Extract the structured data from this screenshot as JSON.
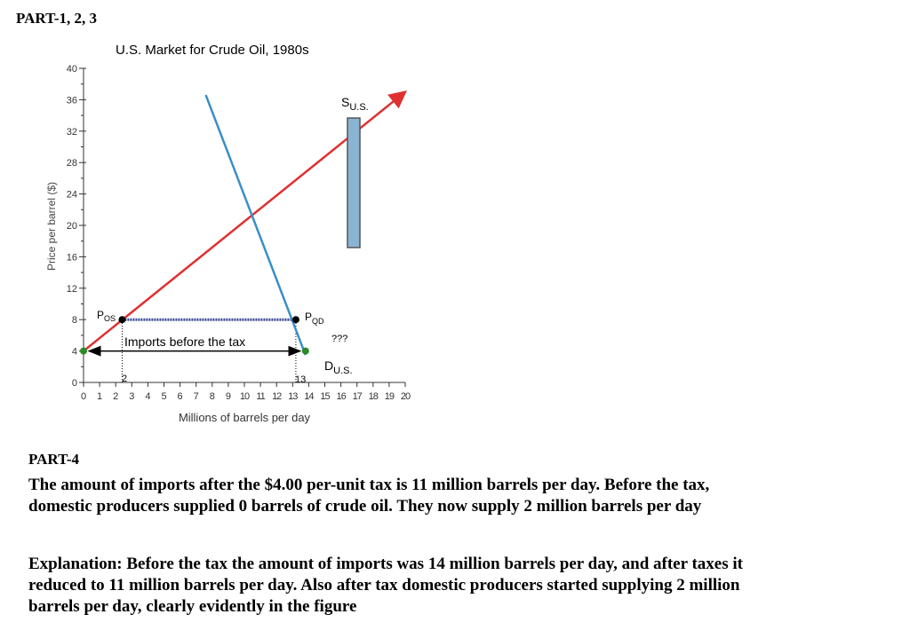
{
  "headings": {
    "part123": "PART-1, 2, 3",
    "part4": "PART-4"
  },
  "chart_data": {
    "type": "line",
    "title": "U.S. Market for Crude Oil, 1980s",
    "xlabel": "Millions of barrels per day",
    "ylabel": "Price per barrel ($)",
    "xlim": [
      0,
      20
    ],
    "ylim": [
      0,
      40
    ],
    "x_ticks": [
      0,
      1,
      2,
      3,
      4,
      5,
      6,
      7,
      8,
      9,
      10,
      11,
      12,
      13,
      14,
      15,
      16,
      17,
      18,
      19,
      20
    ],
    "y_ticks": [
      0,
      4,
      8,
      12,
      16,
      20,
      24,
      28,
      32,
      36,
      40
    ],
    "series": [
      {
        "name": "SU.S.",
        "color": "#e03030",
        "points": [
          [
            0,
            4
          ],
          [
            20,
            37
          ]
        ]
      },
      {
        "name": "DU.S.",
        "color": "#3a8fc8",
        "points": [
          [
            7.6,
            36.6
          ],
          [
            13.8,
            3.5
          ]
        ]
      }
    ],
    "price_lines": [
      {
        "y": 8,
        "x1": 2.4,
        "x2": 13.2,
        "color": "#3a4a9a"
      }
    ],
    "vertical_guides": [
      {
        "x": 2.4,
        "y1": 0,
        "y2": 8
      },
      {
        "x": 13.2,
        "y1": 0,
        "y2": 8
      }
    ],
    "points": [
      {
        "x": 0,
        "y": 4,
        "color": "#2a8a2a"
      },
      {
        "x": 2.4,
        "y": 8,
        "color": "#000000"
      },
      {
        "x": 13.2,
        "y": 8,
        "color": "#000000"
      },
      {
        "x": 13.8,
        "y": 4,
        "color": "#2a8a2a"
      }
    ],
    "arrow": {
      "x1": 0,
      "x2": 13.8,
      "y": 4
    },
    "annotations": {
      "supply_label": "SU.S.",
      "demand_label": "DU.S.",
      "pos_label": "Pos",
      "pqd_label": "PQD",
      "question": "???",
      "imports_label": "Imports before the tax",
      "qs_label": "2",
      "qd_label": "13"
    },
    "tax_bar": {
      "color": "#8ab4d4",
      "y_top": 34.5,
      "y_bottom": 18,
      "x": 18
    }
  },
  "text": {
    "p1": "The amount of imports after the $4.00 per-unit tax is 11 million barrels per day. Before the tax, domestic producers supplied 0 barrels of crude oil. They now supply 2 million barrels per day",
    "p2": "Explanation: Before the tax the amount of imports was 14 million barrels per day, and after taxes it reduced to 11 million barrels per day. Also after tax domestic producers started supplying 2 million barrels per day, clearly evidently in the figure"
  }
}
